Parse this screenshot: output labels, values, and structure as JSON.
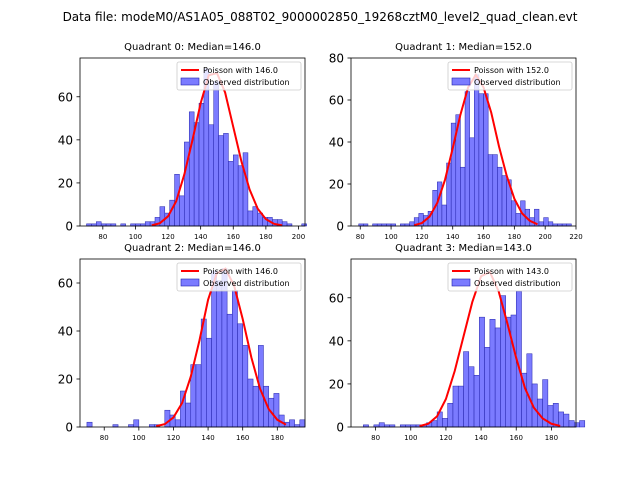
{
  "figure_title": "Data file: modeM0/AS1A05_088T02_9000002850_19268cztM0_level2_quad_clean.evt",
  "colors": {
    "hist_fill": "#7b7bff",
    "hist_edge": "#2222aa",
    "poisson": "#ff0000"
  },
  "chart_data": [
    {
      "type": "bar",
      "title": "Quadrant 0: Median=146.0",
      "median": 146.0,
      "xlim": [
        66,
        204
      ],
      "ylim": [
        0,
        78
      ],
      "xticks": [
        80,
        100,
        120,
        140,
        160,
        180,
        200
      ],
      "yticks": [
        0,
        20,
        40,
        60
      ],
      "legend": [
        "Poisson with 146.0",
        "Observed distribution"
      ],
      "bin_start": 70,
      "bin_width": 3,
      "counts": [
        1,
        1,
        2,
        1,
        1,
        1,
        0,
        1,
        0,
        1,
        1,
        1,
        2,
        2,
        4,
        9,
        6,
        12,
        24,
        14,
        39,
        53,
        48,
        57,
        73,
        47,
        67,
        42,
        43,
        30,
        33,
        28,
        34,
        7,
        9,
        6,
        4,
        4,
        3,
        3,
        2,
        1,
        0,
        0,
        1
      ],
      "poisson_x": [
        110,
        115,
        120,
        125,
        130,
        135,
        140,
        145,
        150,
        155,
        160,
        165,
        170,
        175,
        180,
        185,
        190
      ],
      "poisson_y": [
        0.3,
        1.3,
        4.5,
        11.5,
        24,
        40,
        57,
        70,
        71,
        62,
        46,
        30,
        17,
        8,
        3.2,
        1,
        0.3
      ]
    },
    {
      "type": "bar",
      "title": "Quadrant 1: Median=152.0",
      "median": 152.0,
      "xlim": [
        74,
        220
      ],
      "ylim": [
        0,
        80
      ],
      "yticks": [
        0,
        20,
        40,
        60,
        80
      ],
      "xticks": [
        80,
        100,
        120,
        140,
        160,
        180,
        200,
        220
      ],
      "legend": [
        "Poisson with 152.0",
        "Observed distribution"
      ],
      "bin_start": 79,
      "bin_width": 3,
      "counts": [
        1,
        1,
        0,
        1,
        1,
        1,
        1,
        1,
        0,
        1,
        1,
        2,
        4,
        6,
        5,
        7,
        17,
        21,
        10,
        30,
        49,
        53,
        28,
        64,
        42,
        72,
        63,
        63,
        34,
        34,
        28,
        24,
        22,
        12,
        6,
        12,
        8,
        4,
        8,
        2,
        4,
        2,
        1,
        1,
        1,
        1
      ],
      "poisson_x": [
        115,
        120,
        125,
        130,
        135,
        140,
        145,
        150,
        155,
        160,
        165,
        170,
        175,
        180,
        185,
        190,
        195
      ],
      "poisson_y": [
        0.4,
        1.4,
        4.5,
        11,
        22,
        37,
        53,
        66,
        72,
        66,
        54,
        38,
        24,
        13,
        6,
        2.5,
        0.8
      ]
    },
    {
      "type": "bar",
      "title": "Quadrant 2: Median=146.0",
      "median": 146.0,
      "xlim": [
        66,
        196
      ],
      "ylim": [
        0,
        70
      ],
      "yticks": [
        0,
        20,
        40,
        60
      ],
      "xticks": [
        80,
        100,
        120,
        140,
        160,
        180
      ],
      "legend": [
        "Poisson with 146.0",
        "Observed distribution"
      ],
      "bin_start": 70,
      "bin_width": 3,
      "counts": [
        2,
        0,
        0,
        0,
        0,
        1,
        0,
        0,
        1,
        3,
        0,
        0,
        1,
        1,
        0,
        7,
        5,
        3,
        15,
        10,
        26,
        26,
        45,
        37,
        65,
        61,
        66,
        47,
        57,
        43,
        34,
        20,
        17,
        34,
        17,
        12,
        14,
        5,
        2,
        3,
        1,
        3
      ],
      "poisson_x": [
        110,
        115,
        120,
        125,
        130,
        135,
        140,
        145,
        150,
        155,
        160,
        165,
        170,
        175,
        180,
        185
      ],
      "poisson_y": [
        0.3,
        1.2,
        4,
        10,
        21,
        36,
        53,
        64,
        66,
        59,
        45,
        29,
        16,
        7.5,
        3,
        1
      ]
    },
    {
      "type": "bar",
      "title": "Quadrant 3: Median=143.0",
      "median": 143.0,
      "xlim": [
        66,
        194
      ],
      "ylim": [
        0,
        78
      ],
      "yticks": [
        0,
        20,
        40,
        60
      ],
      "xticks": [
        80,
        100,
        120,
        140,
        160,
        180
      ],
      "legend": [
        "Poisson with 143.0",
        "Observed distribution"
      ],
      "bin_start": 73,
      "bin_width": 3,
      "counts": [
        1,
        0,
        1,
        2,
        1,
        1,
        0,
        1,
        1,
        1,
        1,
        1,
        2,
        3,
        7,
        4,
        11,
        19,
        19,
        35,
        28,
        24,
        51,
        37,
        50,
        46,
        61,
        51,
        52,
        63,
        25,
        34,
        20,
        13,
        22,
        10,
        11,
        7,
        6,
        3,
        2,
        3
      ],
      "poisson_x": [
        105,
        110,
        115,
        120,
        125,
        130,
        135,
        140,
        145,
        150,
        155,
        160,
        165,
        170,
        175,
        180,
        185
      ],
      "poisson_y": [
        0.4,
        1.5,
        5,
        13,
        26,
        42,
        58,
        70,
        72,
        63,
        48,
        32,
        18,
        9,
        4,
        1.5,
        0.5
      ]
    }
  ]
}
